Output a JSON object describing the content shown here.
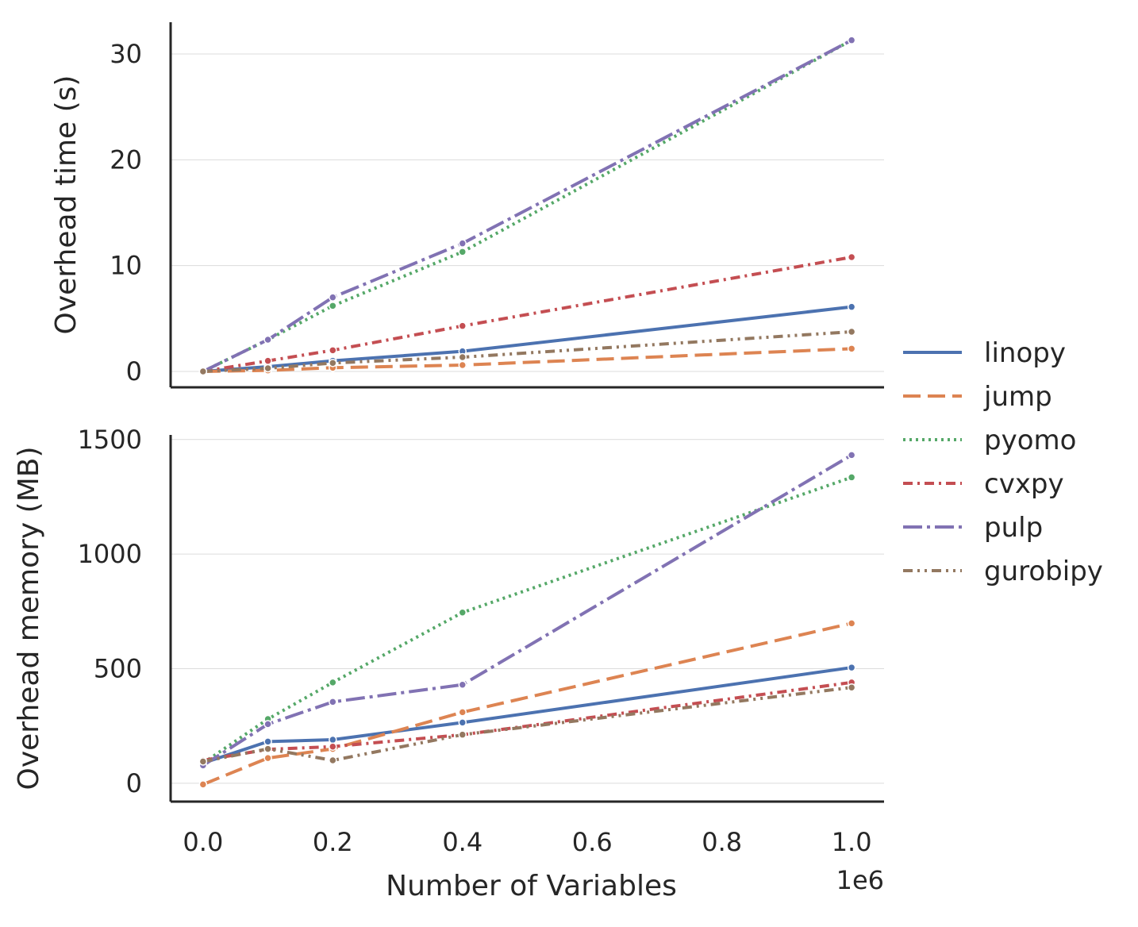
{
  "chart_data": [
    {
      "type": "line",
      "ylabel": "Overhead time (s)",
      "xlabel": "",
      "ylim": [
        -1.5,
        33
      ],
      "yticks": [
        0,
        10,
        20,
        30
      ],
      "grid": "horizontal",
      "x": [
        0,
        100000,
        200000,
        400000,
        1000000
      ],
      "series": [
        {
          "name": "linopy",
          "values": [
            0.0,
            0.45,
            1.0,
            1.9,
            6.1
          ]
        },
        {
          "name": "jump",
          "values": [
            0.0,
            0.1,
            0.35,
            0.6,
            2.15
          ]
        },
        {
          "name": "pyomo",
          "values": [
            0.0,
            3.0,
            6.2,
            11.3,
            31.3
          ]
        },
        {
          "name": "cvxpy",
          "values": [
            0.0,
            1.0,
            2.0,
            4.3,
            10.8
          ]
        },
        {
          "name": "pulp",
          "values": [
            0.0,
            3.0,
            7.0,
            12.1,
            31.3
          ]
        },
        {
          "name": "gurobipy",
          "values": [
            0.0,
            0.3,
            0.8,
            1.35,
            3.75
          ]
        }
      ]
    },
    {
      "type": "line",
      "ylabel": "Overhead memory (MB)",
      "xlabel": "Number of Variables",
      "x_offset_label": "1e6",
      "ylim": [
        -80,
        1520
      ],
      "yticks": [
        0,
        500,
        1000,
        1500
      ],
      "xlim": [
        -50000,
        1050000
      ],
      "xticks": [
        "0.0",
        "0.2",
        "0.4",
        "0.6",
        "0.8",
        "1.0"
      ],
      "grid": "horizontal",
      "x": [
        0,
        100000,
        200000,
        400000,
        1000000
      ],
      "series": [
        {
          "name": "linopy",
          "values": [
            88,
            182,
            190,
            265,
            505
          ]
        },
        {
          "name": "jump",
          "values": [
            -5,
            110,
            150,
            310,
            698
          ]
        },
        {
          "name": "pyomo",
          "values": [
            88,
            280,
            440,
            745,
            1335
          ]
        },
        {
          "name": "cvxpy",
          "values": [
            100,
            148,
            160,
            212,
            440
          ]
        },
        {
          "name": "pulp",
          "values": [
            78,
            258,
            355,
            430,
            1432
          ]
        },
        {
          "name": "gurobipy",
          "values": [
            95,
            150,
            100,
            212,
            418
          ]
        }
      ]
    }
  ],
  "legend": {
    "position": "center-right",
    "items": [
      {
        "name": "linopy",
        "color": "#4c72b0",
        "dash": "solid"
      },
      {
        "name": "jump",
        "color": "#dd8452",
        "dash": "dashed"
      },
      {
        "name": "pyomo",
        "color": "#55a868",
        "dash": "dotted"
      },
      {
        "name": "cvxpy",
        "color": "#c44e52",
        "dash": "dashdot"
      },
      {
        "name": "pulp",
        "color": "#8172b3",
        "dash": "longdashdot"
      },
      {
        "name": "gurobipy",
        "color": "#937860",
        "dash": "dashdotdot"
      }
    ]
  }
}
